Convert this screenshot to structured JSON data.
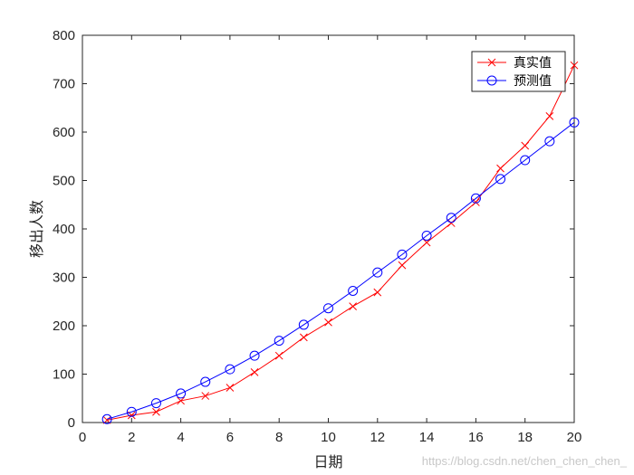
{
  "colors": {
    "actual": "#ff0000",
    "predicted": "#0000ff",
    "axis": "#262626"
  },
  "watermark": "https://blog.csdn.net/chen_chen_chen_",
  "chart_data": {
    "type": "line",
    "xlabel": "日期",
    "ylabel": "移出人数",
    "xlim": [
      0,
      20
    ],
    "ylim": [
      0,
      800
    ],
    "xticks": [
      0,
      2,
      4,
      6,
      8,
      10,
      12,
      14,
      16,
      18,
      20
    ],
    "yticks": [
      0,
      100,
      200,
      300,
      400,
      500,
      600,
      700,
      800
    ],
    "grid": false,
    "legend_position": "top-right",
    "x": [
      1,
      2,
      3,
      4,
      5,
      6,
      7,
      8,
      9,
      10,
      11,
      12,
      13,
      14,
      15,
      16,
      17,
      18,
      19,
      20
    ],
    "series": [
      {
        "name": "真实值",
        "color_key": "actual",
        "marker": "x",
        "values": [
          5,
          15,
          22,
          45,
          55,
          72,
          104,
          138,
          176,
          207,
          240,
          269,
          325,
          372,
          412,
          455,
          525,
          572,
          633,
          738
        ]
      },
      {
        "name": "预测值",
        "color_key": "predicted",
        "marker": "o",
        "values": [
          7,
          22,
          40,
          60,
          84,
          110,
          138,
          169,
          202,
          236,
          272,
          310,
          347,
          386,
          423,
          463,
          503,
          542,
          581,
          620
        ]
      }
    ]
  }
}
